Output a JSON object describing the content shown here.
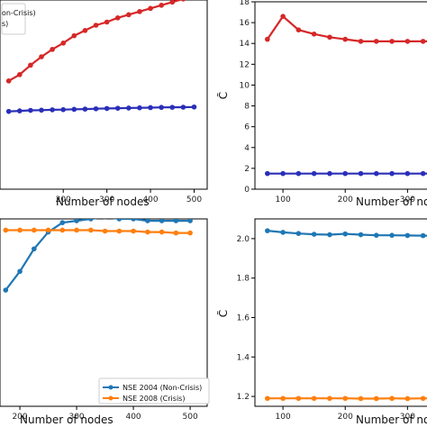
{
  "chart_data": [
    {
      "type": "line",
      "xlabel": "Number of nodes",
      "ylabel": "",
      "xlim": [
        55,
        530
      ],
      "ylim": [
        0,
        18
      ],
      "xticks": [
        "200",
        "300",
        "400",
        "500"
      ],
      "yticks": [],
      "legend": [
        "on-Crisis)",
        "s)"
      ],
      "series": [
        {
          "color": "#d62728",
          "x": [
            75,
            100,
            125,
            150,
            175,
            200,
            225,
            250,
            275,
            300,
            325,
            350,
            375,
            400,
            425,
            450,
            475,
            500
          ],
          "y": [
            10.3,
            10.9,
            11.8,
            12.6,
            13.3,
            13.9,
            14.6,
            15.1,
            15.6,
            15.9,
            16.3,
            16.6,
            16.9,
            17.2,
            17.5,
            17.8,
            18.1,
            18.4
          ]
        },
        {
          "color": "#2a2fb8",
          "x": [
            75,
            100,
            125,
            150,
            175,
            200,
            225,
            250,
            275,
            300,
            325,
            350,
            375,
            400,
            425,
            450,
            475,
            500
          ],
          "y": [
            7.4,
            7.45,
            7.5,
            7.52,
            7.55,
            7.57,
            7.6,
            7.62,
            7.65,
            7.68,
            7.7,
            7.72,
            7.74,
            7.76,
            7.78,
            7.79,
            7.8,
            7.82
          ]
        }
      ]
    },
    {
      "type": "line",
      "xlabel": "Number of nod",
      "ylabel": "C̃",
      "xlim": [
        55,
        340
      ],
      "ylim": [
        0,
        18
      ],
      "xticks": [
        "100",
        "200",
        "300"
      ],
      "yticks": [
        "0",
        "2",
        "4",
        "6",
        "8",
        "10",
        "12",
        "14",
        "16",
        "18"
      ],
      "series": [
        {
          "color": "#d62728",
          "x": [
            75,
            100,
            125,
            150,
            175,
            200,
            225,
            250,
            275,
            300,
            325,
            350
          ],
          "y": [
            14.4,
            16.6,
            15.3,
            14.9,
            14.6,
            14.4,
            14.2,
            14.2,
            14.2,
            14.2,
            14.2,
            14.2
          ]
        },
        {
          "color": "#2a2fb8",
          "x": [
            75,
            100,
            125,
            150,
            175,
            200,
            225,
            250,
            275,
            300,
            325,
            350
          ],
          "y": [
            1.5,
            1.5,
            1.5,
            1.5,
            1.5,
            1.5,
            1.5,
            1.5,
            1.5,
            1.5,
            1.5,
            1.5
          ]
        }
      ]
    },
    {
      "type": "line",
      "xlabel": "Number of nodes",
      "ylabel": "",
      "xlim": [
        165,
        530
      ],
      "ylim": [
        0,
        1
      ],
      "xticks": [
        "200",
        "300",
        "400",
        "500"
      ],
      "yticks": [],
      "legend": [
        "NSE 2004 (Non-Crisis)",
        "NSE 2008 (Crisis)"
      ],
      "series": [
        {
          "name": "NSE 2004 (Non-Crisis)",
          "color": "#1f77b4",
          "x": [
            175,
            200,
            225,
            250,
            275,
            300,
            325,
            350,
            375,
            400,
            425,
            450,
            475,
            500
          ],
          "y": [
            0.62,
            0.72,
            0.84,
            0.93,
            0.98,
            0.99,
            1.0,
            1.01,
            1.0,
            1.0,
            0.99,
            0.99,
            0.99,
            0.99
          ]
        },
        {
          "name": "NSE 2008 (Crisis)",
          "color": "#ff7f0e",
          "x": [
            175,
            200,
            225,
            250,
            275,
            300,
            325,
            350,
            375,
            400,
            425,
            450,
            475,
            500
          ],
          "y": [
            0.94,
            0.94,
            0.94,
            0.94,
            0.94,
            0.94,
            0.94,
            0.935,
            0.935,
            0.935,
            0.93,
            0.93,
            0.925,
            0.925
          ]
        }
      ]
    },
    {
      "type": "line",
      "xlabel": "Number of nod",
      "ylabel": "C̃",
      "xlim": [
        55,
        340
      ],
      "ylim": [
        1.15,
        2.1
      ],
      "xticks": [
        "100",
        "200",
        "300"
      ],
      "yticks": [
        "1.2",
        "1.4",
        "1.6",
        "1.8",
        "2.0"
      ],
      "series": [
        {
          "color": "#1f77b4",
          "x": [
            75,
            100,
            125,
            150,
            175,
            200,
            225,
            250,
            275,
            300,
            325,
            350
          ],
          "y": [
            2.04,
            2.032,
            2.026,
            2.022,
            2.02,
            2.024,
            2.02,
            2.017,
            2.017,
            2.016,
            2.015,
            2.015
          ]
        },
        {
          "color": "#ff7f0e",
          "x": [
            75,
            100,
            125,
            150,
            175,
            200,
            225,
            250,
            275,
            300,
            325,
            350
          ],
          "y": [
            1.19,
            1.19,
            1.19,
            1.19,
            1.19,
            1.19,
            1.189,
            1.189,
            1.19,
            1.189,
            1.19,
            1.19
          ]
        }
      ]
    }
  ]
}
